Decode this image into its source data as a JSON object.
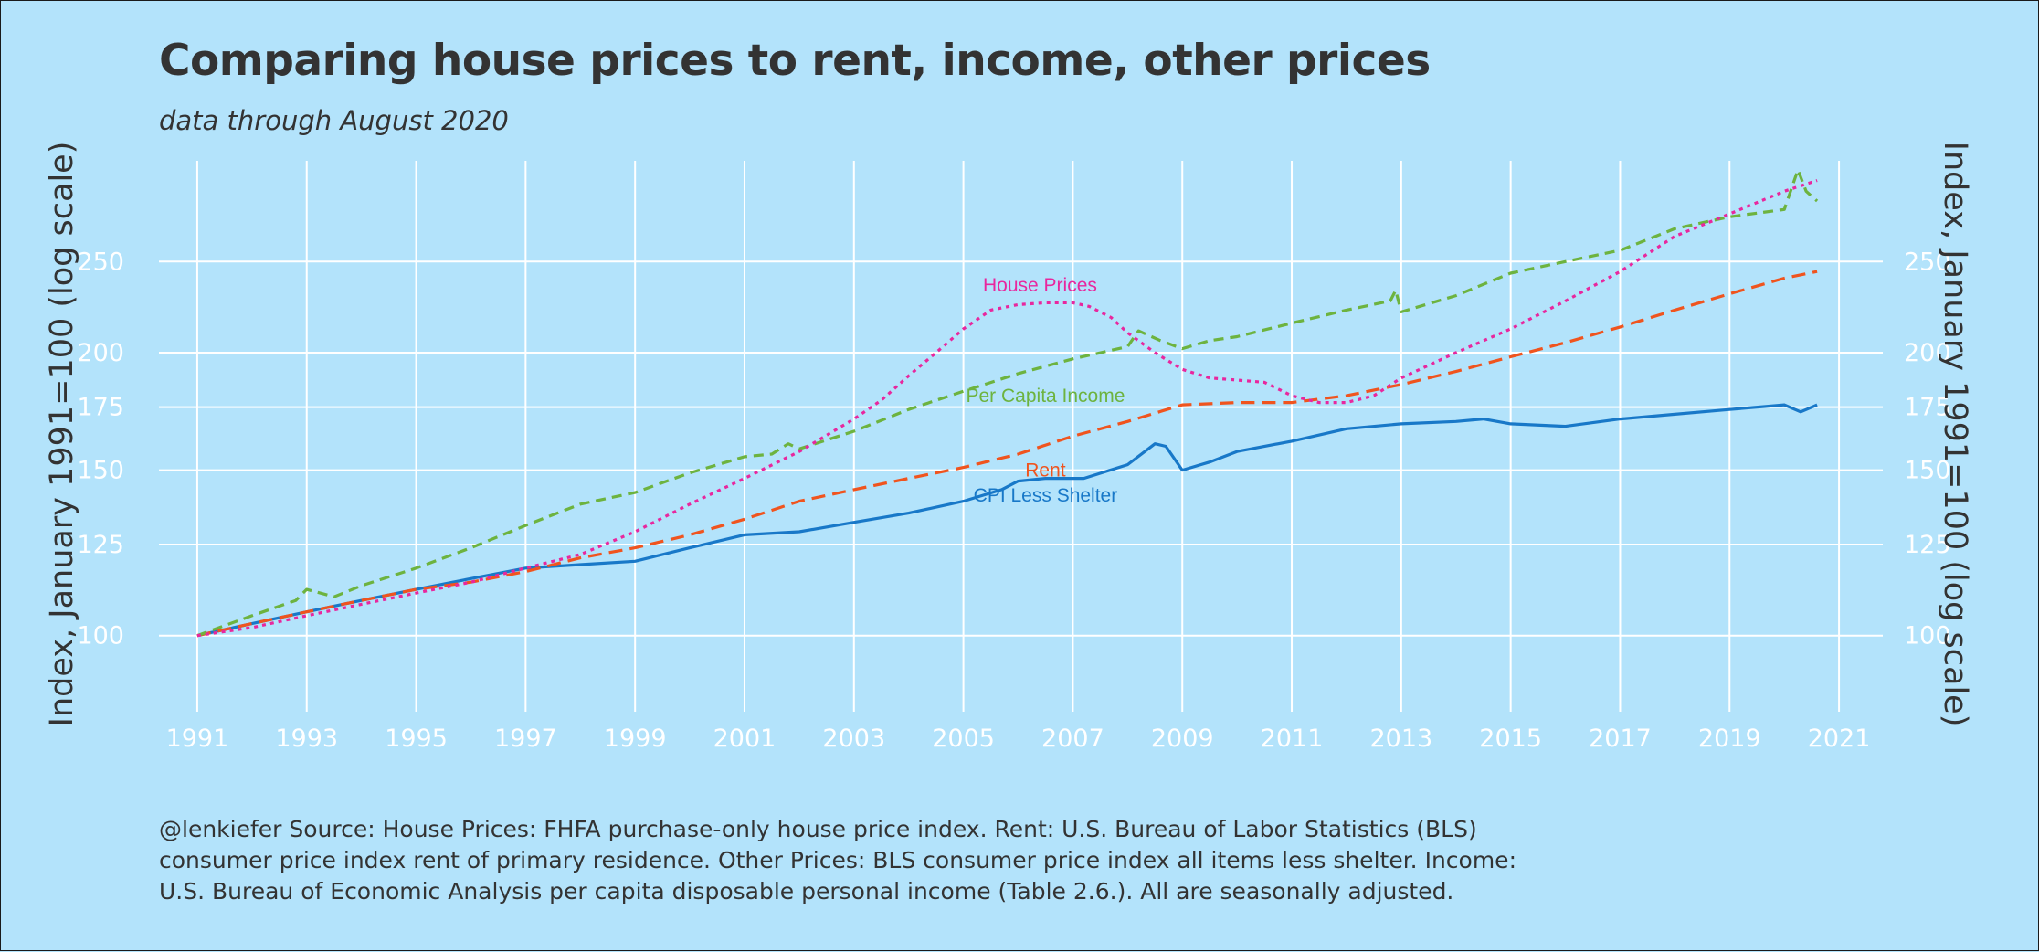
{
  "title": "Comparing house prices to rent, income, other prices",
  "subtitle": "data through August 2020",
  "caption": [
    "@lenkiefer Source: House Prices: FHFA purchase-only house price index. Rent: U.S. Bureau of Labor Statistics (BLS)",
    "consumer price index rent of primary residence. Other Prices: BLS consumer price index all items less shelter. Income:",
    "U.S. Bureau of Economic Analysis per capita disposable personal income (Table 2.6.). All are seasonally adjusted."
  ],
  "colors": {
    "background": "#b3e3fb",
    "grid": "#ffffff",
    "text": "#333333",
    "house_prices": "#e8279e",
    "per_capita_income": "#6db33f",
    "rent": "#f0541e",
    "cpi_less_shelter": "#1878c8"
  },
  "chart_data": {
    "type": "line",
    "title": "Comparing house prices to rent, income, other prices",
    "subtitle": "data through August 2020",
    "ylabel": "Index, January 1991=100 (log scale)",
    "ylabel_right": "Index, January 1991=100 (log scale)",
    "xlabel": "",
    "y_scale": "log",
    "ylim": [
      83,
      320
    ],
    "xlim": [
      1990.3,
      2021.8
    ],
    "y_ticks": [
      100,
      125,
      150,
      175,
      200,
      250
    ],
    "x_ticks": [
      1991,
      1993,
      1995,
      1997,
      1999,
      2001,
      2003,
      2005,
      2007,
      2009,
      2011,
      2013,
      2015,
      2017,
      2019,
      2021
    ],
    "grid": true,
    "legend": "none (direct labels on lines)",
    "series": [
      {
        "name": "House Prices",
        "color": "#e8279e",
        "dash": "dotted",
        "label_at": [
          2006.4,
          236
        ],
        "x": [
          1991.0,
          1992.0,
          1993.0,
          1994.0,
          1995.0,
          1996.0,
          1997.0,
          1998.0,
          1999.0,
          2000.0,
          2001.0,
          2002.0,
          2003.0,
          2003.5,
          2004.0,
          2004.5,
          2005.0,
          2005.5,
          2006.0,
          2006.5,
          2007.0,
          2007.3,
          2007.7,
          2008.0,
          2008.5,
          2009.0,
          2009.5,
          2010.0,
          2010.5,
          2011.0,
          2011.5,
          2012.0,
          2012.5,
          2013.0,
          2014.0,
          2015.0,
          2016.0,
          2017.0,
          2018.0,
          2019.0,
          2020.0,
          2020.6
        ],
        "y": [
          100,
          102,
          105,
          108,
          111,
          114,
          118,
          122,
          129,
          138,
          147,
          157,
          170,
          178,
          189,
          200,
          212,
          222,
          225,
          226,
          226,
          224,
          218,
          210,
          200,
          192,
          188,
          187,
          186,
          180,
          177,
          177,
          180,
          188,
          200,
          212,
          227,
          244,
          266,
          281,
          297,
          305
        ]
      },
      {
        "name": "Per Capita Income",
        "color": "#6db33f",
        "dash": "dashed",
        "label_at": [
          2006.5,
          180
        ],
        "x": [
          1991.0,
          1992.0,
          1992.8,
          1993.0,
          1993.5,
          1994.0,
          1995.0,
          1996.0,
          1997.0,
          1998.0,
          1999.0,
          2000.0,
          2001.0,
          2001.5,
          2001.8,
          2002.0,
          2003.0,
          2004.0,
          2005.0,
          2006.0,
          2007.0,
          2008.0,
          2008.2,
          2008.6,
          2009.0,
          2009.5,
          2010.0,
          2011.0,
          2012.0,
          2012.8,
          2012.9,
          2013.0,
          2014.0,
          2015.0,
          2016.0,
          2017.0,
          2018.0,
          2019.0,
          2020.0,
          2020.25,
          2020.4,
          2020.6
        ],
        "y": [
          100,
          105,
          109,
          112,
          110,
          113,
          118,
          124,
          131,
          138,
          142,
          149,
          155,
          156,
          160,
          158,
          165,
          174,
          182,
          190,
          197,
          203,
          211,
          206,
          202,
          206,
          208,
          215,
          222,
          227,
          233,
          221,
          230,
          243,
          250,
          257,
          271,
          279,
          284,
          313,
          297,
          290
        ]
      },
      {
        "name": "Rent",
        "color": "#f0541e",
        "dash": "longdash",
        "label_at": [
          2006.5,
          150
        ],
        "x": [
          1991.0,
          1992.0,
          1993.0,
          1994.0,
          1995.0,
          1996.0,
          1997.0,
          1998.0,
          1999.0,
          2000.0,
          2001.0,
          2002.0,
          2003.0,
          2004.0,
          2005.0,
          2006.0,
          2007.0,
          2008.0,
          2009.0,
          2010.0,
          2011.0,
          2012.0,
          2013.0,
          2014.0,
          2015.0,
          2016.0,
          2017.0,
          2018.0,
          2019.0,
          2020.0,
          2020.6
        ],
        "y": [
          100,
          103,
          106,
          109,
          112,
          114,
          117,
          121,
          124,
          128,
          133,
          139,
          143,
          147,
          151,
          156,
          163,
          169,
          176,
          177,
          177,
          180,
          185,
          191,
          198,
          205,
          213,
          222,
          231,
          240,
          244
        ]
      },
      {
        "name": "CPI Less Shelter",
        "color": "#1878c8",
        "dash": "solid",
        "label_at": [
          2006.5,
          141
        ],
        "x": [
          1991.0,
          1992.0,
          1993.0,
          1994.0,
          1995.0,
          1996.0,
          1997.0,
          1998.0,
          1999.0,
          2000.0,
          2001.0,
          2002.0,
          2003.0,
          2004.0,
          2005.0,
          2005.7,
          2006.0,
          2006.5,
          2006.9,
          2007.2,
          2008.0,
          2008.5,
          2008.7,
          2009.0,
          2009.5,
          2010.0,
          2011.0,
          2012.0,
          2013.0,
          2014.0,
          2014.5,
          2015.0,
          2016.0,
          2017.0,
          2018.0,
          2019.0,
          2020.0,
          2020.3,
          2020.6
        ],
        "y": [
          100,
          103,
          106,
          109,
          112,
          115,
          118,
          119,
          120,
          124,
          128,
          129,
          132,
          135,
          139,
          143,
          146,
          147,
          147,
          147,
          152,
          160,
          159,
          150,
          153,
          157,
          161,
          166,
          168,
          169,
          170,
          168,
          167,
          170,
          172,
          174,
          176,
          173,
          176
        ]
      }
    ]
  }
}
